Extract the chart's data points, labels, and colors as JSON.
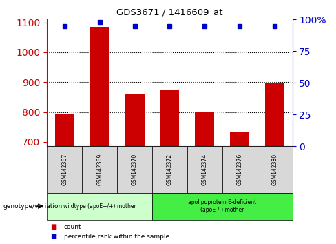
{
  "title": "GDS3671 / 1416609_at",
  "samples": [
    "GSM142367",
    "GSM142369",
    "GSM142370",
    "GSM142372",
    "GSM142374",
    "GSM142376",
    "GSM142380"
  ],
  "counts": [
    793,
    1085,
    858,
    873,
    800,
    733,
    899
  ],
  "percentile_ranks_pct": [
    95,
    98,
    95,
    95,
    95,
    95,
    95
  ],
  "ylim_left": [
    685,
    1110
  ],
  "ylim_right": [
    0,
    100
  ],
  "yticks_left": [
    700,
    800,
    900,
    1000,
    1100
  ],
  "yticks_right": [
    0,
    25,
    50,
    75,
    100
  ],
  "ytick_labels_right": [
    "0",
    "25",
    "50",
    "75",
    "100%"
  ],
  "grid_values": [
    800,
    900,
    1000
  ],
  "bar_color": "#cc0000",
  "dot_color": "#0000cc",
  "bar_bottom": 685,
  "groups": [
    {
      "label": "wildtype (apoE+/+) mother",
      "start": 0,
      "end": 3,
      "color": "#ccffcc"
    },
    {
      "label": "apolipoprotein E-deficient\n(apoE-/-) mother",
      "start": 3,
      "end": 7,
      "color": "#44ee44"
    }
  ],
  "xlabel_group": "genotype/variation",
  "legend_count_label": "count",
  "legend_pct_label": "percentile rank within the sample",
  "left_axis_color": "#cc0000",
  "right_axis_color": "#0000cc",
  "label_box_color": "#d8d8d8",
  "fig_width": 4.88,
  "fig_height": 3.54,
  "dpi": 100
}
